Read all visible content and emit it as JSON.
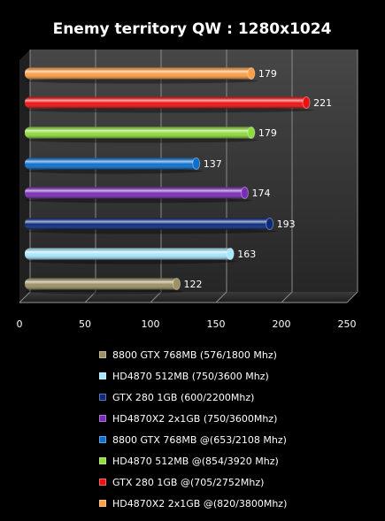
{
  "chart_data": {
    "type": "bar",
    "orientation": "horizontal",
    "title": "Enemy territory QW : 1280x1024",
    "xlabel": "",
    "ylabel": "",
    "xlim": [
      0,
      250
    ],
    "ticks": [
      0,
      50,
      100,
      150,
      200,
      250
    ],
    "grid": true,
    "legend_position": "bottom",
    "series": [
      {
        "name": "8800 GTX 768MB (576/1800 Mhz)",
        "value": 122,
        "color": "#9c9162"
      },
      {
        "name": "HD4870 512MB (750/3600 Mhz)",
        "value": 163,
        "color": "#a9e6ff"
      },
      {
        "name": "GTX 280 1GB (600/2200Mhz)",
        "value": 193,
        "color": "#0a2a7e"
      },
      {
        "name": "HD4870X2 2x1GB (750/3600Mhz)",
        "value": 174,
        "color": "#7a2cb8"
      },
      {
        "name": "8800 GTX 768MB @(653/2108 Mhz)",
        "value": 137,
        "color": "#0b6fd0"
      },
      {
        "name": "HD4870 512MB @(854/3920 Mhz)",
        "value": 179,
        "color": "#8fdc3a"
      },
      {
        "name": "GTX 280 1GB @(705/2752Mhz)",
        "value": 221,
        "color": "#f01010"
      },
      {
        "name": "HD4870X2 2x1GB @(820/3800Mhz)",
        "value": 179,
        "color": "#ff9f45"
      }
    ]
  }
}
